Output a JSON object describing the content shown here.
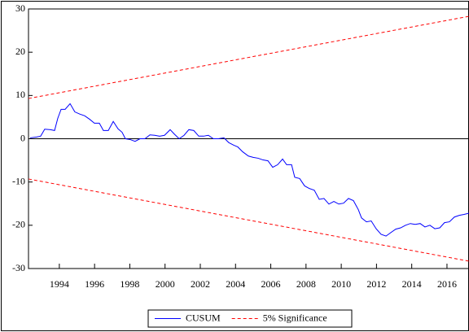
{
  "chart_data": {
    "type": "line",
    "ylim": [
      -30,
      30
    ],
    "yticks": [
      -30,
      -20,
      -10,
      0,
      10,
      20,
      30
    ],
    "xlim": [
      1992.75,
      2017.75
    ],
    "xticks": [
      {
        "value": 1994.5,
        "label": "1994"
      },
      {
        "value": 1996.5,
        "label": "1996"
      },
      {
        "value": 1998.5,
        "label": "1998"
      },
      {
        "value": 2000.5,
        "label": "2000"
      },
      {
        "value": 2002.5,
        "label": "2002"
      },
      {
        "value": 2004.5,
        "label": "2004"
      },
      {
        "value": 2006.5,
        "label": "2006"
      },
      {
        "value": 2008.5,
        "label": "2008"
      },
      {
        "value": 2010.5,
        "label": "2010"
      },
      {
        "value": 2012.5,
        "label": "2012"
      },
      {
        "value": 2014.5,
        "label": "2014"
      },
      {
        "value": 2016.5,
        "label": "2016"
      }
    ],
    "zero_line": true,
    "legend": "bottom",
    "series": [
      {
        "name": "CUSUM",
        "color": "#0000ff",
        "dash": false,
        "x": [
          1992.84,
          1993.21,
          1993.44,
          1993.67,
          1994.0,
          1994.23,
          1994.41,
          1994.6,
          1994.83,
          1995.11,
          1995.38,
          1995.66,
          1995.94,
          1996.22,
          1996.49,
          1996.77,
          1997.0,
          1997.28,
          1997.56,
          1997.83,
          1998.06,
          1998.25,
          1998.53,
          1998.8,
          1999.08,
          1999.36,
          1999.64,
          1999.91,
          2000.19,
          2000.47,
          2000.79,
          2001.02,
          2001.3,
          2001.58,
          2001.85,
          2002.13,
          2002.41,
          2002.69,
          2002.96,
          2003.24,
          2003.52,
          2003.84,
          2004.12,
          2004.4,
          2004.63,
          2004.9,
          2005.23,
          2005.5,
          2005.78,
          2006.06,
          2006.34,
          2006.61,
          2006.89,
          2007.17,
          2007.4,
          2007.68,
          2007.86,
          2008.14,
          2008.42,
          2008.69,
          2008.97,
          2009.25,
          2009.52,
          2009.8,
          2010.08,
          2010.36,
          2010.63,
          2010.91,
          2011.19,
          2011.47,
          2011.65,
          2011.93,
          2012.2,
          2012.48,
          2012.76,
          2013.04,
          2013.31,
          2013.59,
          2013.87,
          2014.15,
          2014.42,
          2014.7,
          2014.98,
          2015.25,
          2015.53,
          2015.81,
          2016.09,
          2016.36,
          2016.64,
          2016.92,
          2017.2,
          2017.47,
          2017.75
        ],
        "values": [
          0.2,
          0.4,
          0.6,
          2.2,
          2.1,
          1.9,
          4.7,
          6.8,
          6.8,
          8.1,
          6.2,
          5.7,
          5.3,
          4.5,
          3.6,
          3.6,
          1.9,
          1.9,
          4.0,
          2.3,
          1.5,
          0,
          -0.2,
          -0.6,
          0,
          0,
          0.9,
          0.8,
          0.6,
          0.8,
          2.1,
          1.1,
          0,
          0.8,
          2.1,
          1.9,
          0.6,
          0.6,
          0.8,
          0,
          0,
          0.2,
          -0.9,
          -1.5,
          -1.9,
          -3.0,
          -4.0,
          -4.3,
          -4.5,
          -4.9,
          -5.1,
          -6.6,
          -6.0,
          -4.7,
          -6.0,
          -6.0,
          -8.9,
          -9.2,
          -10.9,
          -11.5,
          -11.9,
          -14.0,
          -13.8,
          -15.1,
          -14.5,
          -15.1,
          -14.9,
          -13.8,
          -14.3,
          -16.4,
          -18.3,
          -19.2,
          -19.0,
          -20.8,
          -22.1,
          -22.5,
          -21.7,
          -20.9,
          -20.6,
          -20.0,
          -19.6,
          -19.8,
          -19.6,
          -20.4,
          -20.0,
          -20.8,
          -20.6,
          -19.4,
          -19.2,
          -18.1,
          -17.7,
          -17.5,
          -17.2
        ]
      },
      {
        "name": "5% Significance",
        "color": "#ff0000",
        "dash": true,
        "x": [
          1992.75,
          2017.75
        ],
        "values": [
          9.3,
          28.3
        ]
      },
      {
        "name": null,
        "color": "#ff0000",
        "dash": true,
        "x": [
          1992.75,
          2017.75
        ],
        "values": [
          -9.3,
          -28.3
        ]
      }
    ]
  }
}
